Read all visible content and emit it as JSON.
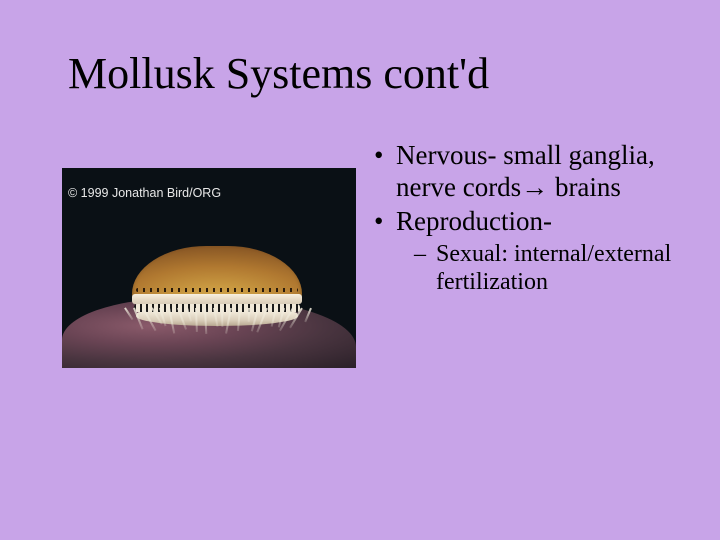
{
  "slide": {
    "title": "Mollusk Systems cont'd",
    "background_color": "#c8a4e8",
    "text_color": "#000000",
    "font_family": "Times New Roman",
    "title_fontsize": 44,
    "body_fontsize_l1": 27,
    "body_fontsize_l2": 24
  },
  "image": {
    "copyright_text": "© 1999 Jonathan Bird/ORG",
    "copyright_color": "#e8e8e8",
    "copyright_fontsize": 12.5,
    "background_color": "#0a1015",
    "shell_colors": {
      "top_gradient": [
        "#d4a850",
        "#c89840",
        "#b07830",
        "#8a5825",
        "#5a3818"
      ],
      "band": "#f8f0e0",
      "rock": "#6b4555"
    }
  },
  "bullets": {
    "l1": [
      "Nervous- small ganglia, nerve cords→ brains",
      "Reproduction-"
    ],
    "l2": [
      "Sexual: internal/external fertilization"
    ]
  }
}
